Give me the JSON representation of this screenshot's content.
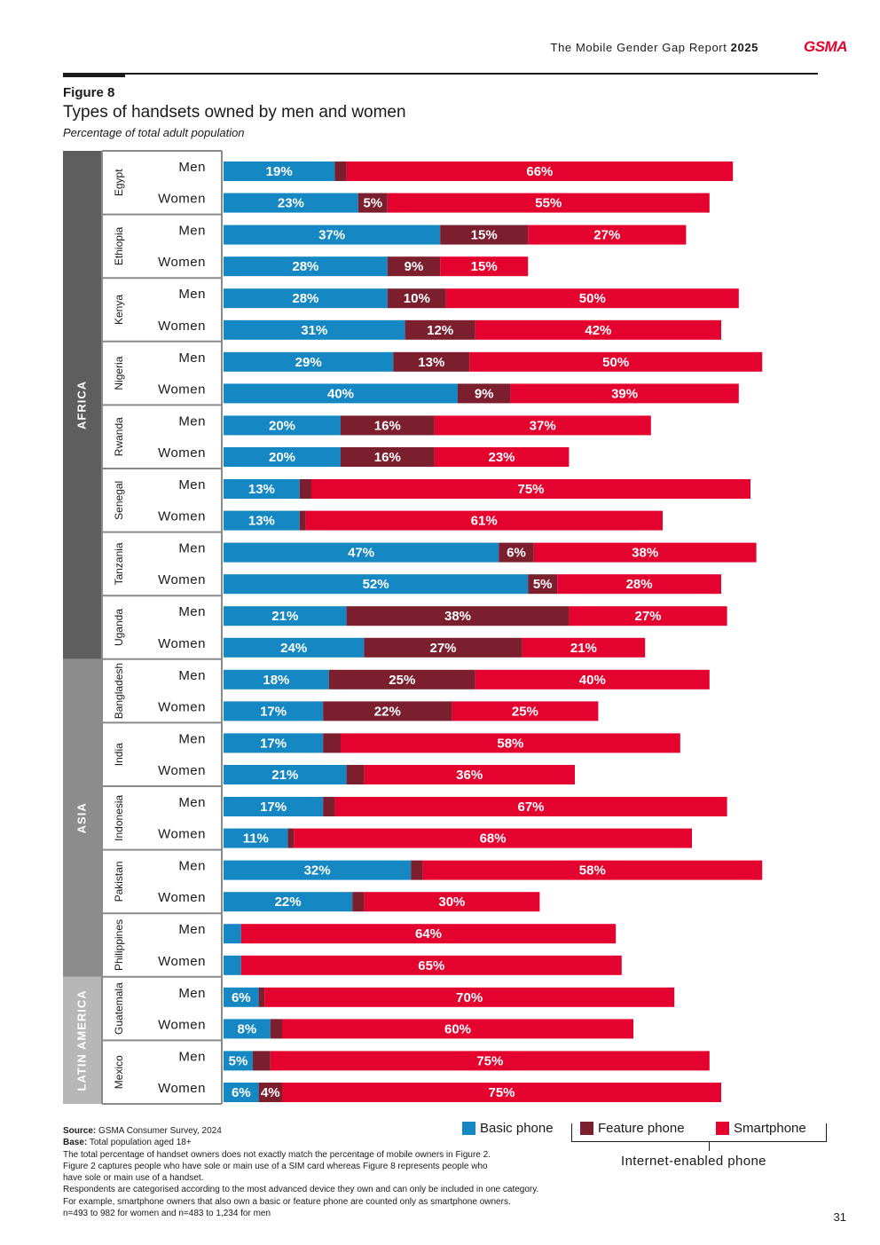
{
  "header": {
    "report_title": "The Mobile Gender Gap Report",
    "report_year": "2025",
    "logo": "GSMA"
  },
  "figure": {
    "label": "Figure 8",
    "title": "Types of handsets owned by men and women",
    "subtitle": "Percentage of total adult population"
  },
  "colors": {
    "basic": "#1587c2",
    "feature": "#7b1e2d",
    "smart": "#e4032e",
    "africa": "#5e5e5e",
    "asia": "#8c8c8c",
    "latam": "#b7b7b7"
  },
  "legend": {
    "basic_label": "Basic phone",
    "feature_label": "Feature phone",
    "smart_label": "Smartphone",
    "internet_label": "Internet-enabled phone"
  },
  "chart_data": {
    "type": "bar",
    "orientation": "horizontal",
    "stacked": true,
    "title": "Types of handsets owned by men and women",
    "unit": "Percentage of total adult population",
    "series_names": [
      "Basic phone",
      "Feature phone",
      "Smartphone"
    ],
    "regions": [
      {
        "name": "AFRICA",
        "countries": [
          {
            "name": "Egypt",
            "rows": [
              {
                "label": "Men",
                "values": [
                  19,
                  2,
                  66
                ]
              },
              {
                "label": "Women",
                "values": [
                  23,
                  5,
                  55
                ]
              }
            ]
          },
          {
            "name": "Ethiopia",
            "rows": [
              {
                "label": "Men",
                "values": [
                  37,
                  15,
                  27
                ]
              },
              {
                "label": "Women",
                "values": [
                  28,
                  9,
                  15
                ]
              }
            ]
          },
          {
            "name": "Kenya",
            "rows": [
              {
                "label": "Men",
                "values": [
                  28,
                  10,
                  50
                ]
              },
              {
                "label": "Women",
                "values": [
                  31,
                  12,
                  42
                ]
              }
            ]
          },
          {
            "name": "Nigeria",
            "rows": [
              {
                "label": "Men",
                "values": [
                  29,
                  13,
                  50
                ]
              },
              {
                "label": "Women",
                "values": [
                  40,
                  9,
                  39
                ]
              }
            ]
          },
          {
            "name": "Rwanda",
            "rows": [
              {
                "label": "Men",
                "values": [
                  20,
                  16,
                  37
                ]
              },
              {
                "label": "Women",
                "values": [
                  20,
                  16,
                  23
                ]
              }
            ]
          },
          {
            "name": "Senegal",
            "rows": [
              {
                "label": "Men",
                "values": [
                  13,
                  2,
                  75
                ]
              },
              {
                "label": "Women",
                "values": [
                  13,
                  1,
                  61
                ]
              }
            ]
          },
          {
            "name": "Tanzania",
            "rows": [
              {
                "label": "Men",
                "values": [
                  47,
                  6,
                  38
                ]
              },
              {
                "label": "Women",
                "values": [
                  52,
                  5,
                  28
                ]
              }
            ]
          },
          {
            "name": "Uganda",
            "rows": [
              {
                "label": "Men",
                "values": [
                  21,
                  38,
                  27
                ]
              },
              {
                "label": "Women",
                "values": [
                  24,
                  27,
                  21
                ]
              }
            ]
          }
        ]
      },
      {
        "name": "ASIA",
        "countries": [
          {
            "name": "Bangladesh",
            "rows": [
              {
                "label": "Men",
                "values": [
                  18,
                  25,
                  40
                ]
              },
              {
                "label": "Women",
                "values": [
                  17,
                  22,
                  25
                ]
              }
            ]
          },
          {
            "name": "India",
            "rows": [
              {
                "label": "Men",
                "values": [
                  17,
                  3,
                  58
                ]
              },
              {
                "label": "Women",
                "values": [
                  21,
                  3,
                  36
                ]
              }
            ]
          },
          {
            "name": "Indonesia",
            "rows": [
              {
                "label": "Men",
                "values": [
                  17,
                  2,
                  67
                ]
              },
              {
                "label": "Women",
                "values": [
                  11,
                  1,
                  68
                ]
              }
            ]
          },
          {
            "name": "Pakistan",
            "rows": [
              {
                "label": "Men",
                "values": [
                  32,
                  2,
                  58
                ]
              },
              {
                "label": "Women",
                "values": [
                  22,
                  2,
                  30
                ]
              }
            ]
          },
          {
            "name": "Philippines",
            "rows": [
              {
                "label": "Men",
                "values": [
                  3,
                  0,
                  64
                ]
              },
              {
                "label": "Women",
                "values": [
                  3,
                  0,
                  65
                ]
              }
            ]
          }
        ]
      },
      {
        "name": "LATIN AMERICA",
        "countries": [
          {
            "name": "Guatemala",
            "rows": [
              {
                "label": "Men",
                "values": [
                  6,
                  1,
                  70
                ]
              },
              {
                "label": "Women",
                "values": [
                  8,
                  2,
                  60
                ]
              }
            ]
          },
          {
            "name": "Mexico",
            "rows": [
              {
                "label": "Men",
                "values": [
                  5,
                  3,
                  75
                ]
              },
              {
                "label": "Women",
                "values": [
                  6,
                  4,
                  75
                ]
              }
            ]
          }
        ]
      }
    ]
  },
  "notes": {
    "source_label": "Source:",
    "source_text": "GSMA Consumer Survey, 2024",
    "base_label": "Base:",
    "base_text": "Total population aged 18+",
    "line1": "The total percentage of handset owners does not exactly match the percentage of mobile owners in Figure 2.",
    "line2": "Figure 2 captures people who have sole or main use of a SIM card whereas Figure 8 represents people who",
    "line3": "have sole or main use of a handset.",
    "line4": "Respondents are categorised according to the most advanced device they own and can only be included in one category.",
    "line5": "For example, smartphone owners that also own a basic or feature phone are counted only as smartphone owners.",
    "line6": "n=493 to 982 for women and n=483 to 1,234 for men"
  },
  "page_number": "31"
}
